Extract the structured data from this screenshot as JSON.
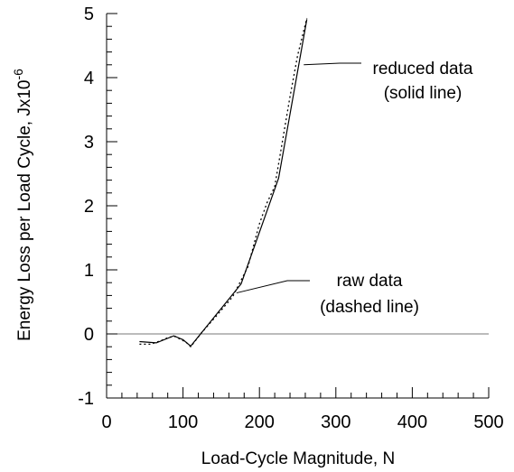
{
  "chart_data": {
    "type": "line",
    "title": "",
    "xlabel": "Load-Cycle Magnitude, N",
    "ylabel_main": "Energy Loss per Load Cycle, Jx10",
    "ylabel_sup": "-6",
    "xlim": [
      0,
      500
    ],
    "ylim": [
      -1,
      5
    ],
    "xticks": [
      0,
      100,
      200,
      300,
      400,
      500
    ],
    "xtick_labels": [
      "0",
      "100",
      "200",
      "300",
      "400",
      "500"
    ],
    "xminor_step": 20,
    "yticks": [
      -1,
      0,
      1,
      2,
      3,
      4,
      5
    ],
    "ytick_labels": [
      "-1",
      "0",
      "1",
      "2",
      "3",
      "4",
      "5"
    ],
    "yminor_step": 0.2,
    "zero_line": true,
    "grid": false,
    "series": [
      {
        "style": "solid",
        "x": [
          43,
          65,
          88,
          100,
          110,
          176,
          225,
          262
        ],
        "y": [
          -0.12,
          -0.14,
          -0.03,
          -0.09,
          -0.19,
          0.78,
          2.43,
          4.91
        ]
      },
      {
        "style": "dashed",
        "x": [
          43,
          58,
          72,
          82,
          90,
          96,
          104,
          110,
          125,
          145,
          165,
          185,
          200,
          210,
          220,
          230,
          240,
          250,
          262
        ],
        "y": [
          -0.16,
          -0.16,
          -0.1,
          -0.05,
          -0.04,
          -0.08,
          -0.13,
          -0.2,
          0.03,
          0.3,
          0.58,
          1.05,
          1.72,
          2.05,
          2.3,
          3.0,
          3.7,
          4.35,
          4.93
        ]
      }
    ],
    "annotations": [
      {
        "lines": [
          "reduced data",
          "(solid line)"
        ],
        "arrow_to": [
          258,
          4.2
        ]
      },
      {
        "lines": [
          "raw data",
          "(dashed line)"
        ],
        "arrow_to": [
          170,
          0.64
        ]
      }
    ]
  }
}
